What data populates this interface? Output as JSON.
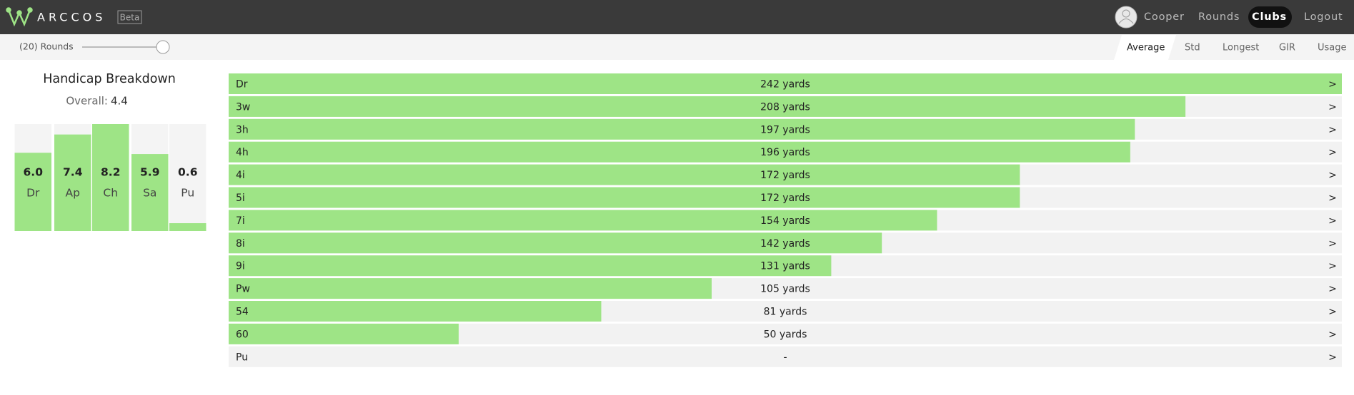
{
  "header": {
    "brand": "ARCCOS",
    "badge": "Beta",
    "nav": [
      "Cooper",
      "Rounds",
      "Clubs",
      "Logout"
    ],
    "active_nav": 2
  },
  "toolbar": {
    "rounds_label": "(20) Rounds",
    "tabs": [
      "Average",
      "Std",
      "Longest",
      "GIR",
      "Usage"
    ],
    "active_tab": 0
  },
  "handicap": {
    "title": "Handicap Breakdown",
    "overall_label": "Overall:",
    "overall_value": 4.4,
    "categories": [
      "Dr",
      "Ap",
      "Ch",
      "Sa",
      "Pu"
    ],
    "values": [
      6.0,
      7.4,
      8.2,
      5.9,
      0.6
    ],
    "value_labels": [
      "6.0",
      "7.4",
      "8.2",
      "5.9",
      "0.6"
    ],
    "color": "#9ee486"
  },
  "clubs": {
    "categories": [
      "Dr",
      "3w",
      "3h",
      "4h",
      "4i",
      "5i",
      "7i",
      "8i",
      "9i",
      "Pw",
      "54",
      "60",
      "Pu"
    ],
    "values": [
      242,
      208,
      197,
      196,
      172,
      172,
      154,
      142,
      131,
      105,
      81,
      50,
      null
    ],
    "value_labels": [
      "242 yards",
      "208 yards",
      "197 yards",
      "196 yards",
      "172 yards",
      "172 yards",
      "154 yards",
      "142 yards",
      "131 yards",
      "105 yards",
      "81 yards",
      "50 yards",
      "-"
    ],
    "row_arrow": ">",
    "color": "#9ee486"
  }
}
